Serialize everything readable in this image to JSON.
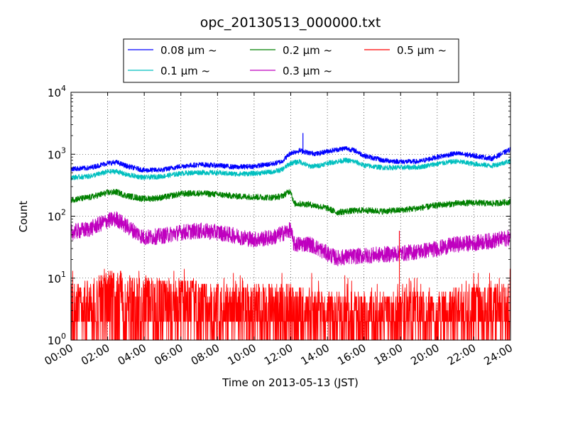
{
  "chart_data": {
    "type": "line",
    "title": "opc_20130513_000000.txt",
    "xlabel": "Time on 2013-05-13 (JST)",
    "ylabel": "Count",
    "x_scale": "time",
    "y_scale": "log",
    "xlim": [
      "00:00",
      "24:00"
    ],
    "ylim": [
      1,
      10000
    ],
    "grid": true,
    "legend_position": "top-center",
    "x_ticks": [
      "00:00",
      "02:00",
      "04:00",
      "06:00",
      "08:00",
      "10:00",
      "12:00",
      "14:00",
      "16:00",
      "18:00",
      "20:00",
      "22:00",
      "24:00"
    ],
    "y_ticks": [
      {
        "value": 1,
        "base": "10",
        "exp": "0"
      },
      {
        "value": 10,
        "base": "10",
        "exp": "1"
      },
      {
        "value": 100,
        "base": "10",
        "exp": "2"
      },
      {
        "value": 1000,
        "base": "10",
        "exp": "3"
      },
      {
        "value": 10000,
        "base": "10",
        "exp": "4"
      }
    ],
    "series": [
      {
        "name": "0.08 μm ~",
        "color": "#0000ff",
        "x": [
          "00:00",
          "01:00",
          "02:00",
          "02:30",
          "03:00",
          "04:00",
          "05:00",
          "06:00",
          "07:00",
          "08:00",
          "09:00",
          "10:00",
          "11:00",
          "11:30",
          "12:00",
          "12:30",
          "13:00",
          "13:30",
          "14:00",
          "15:00",
          "15:30",
          "16:00",
          "17:00",
          "18:00",
          "19:00",
          "20:00",
          "21:00",
          "22:00",
          "23:00",
          "24:00"
        ],
        "y": [
          580,
          600,
          720,
          740,
          650,
          550,
          560,
          640,
          680,
          660,
          620,
          640,
          700,
          760,
          1050,
          1150,
          1050,
          1020,
          1120,
          1250,
          1150,
          950,
          800,
          760,
          760,
          900,
          1030,
          950,
          850,
          1200
        ]
      },
      {
        "name": "0.1 μm ~",
        "color": "#00bfbf",
        "x": [
          "00:00",
          "01:00",
          "02:00",
          "02:30",
          "03:00",
          "04:00",
          "05:00",
          "06:00",
          "07:00",
          "08:00",
          "09:00",
          "10:00",
          "11:00",
          "11:30",
          "12:00",
          "12:30",
          "13:00",
          "13:30",
          "14:00",
          "15:00",
          "15:30",
          "16:00",
          "17:00",
          "18:00",
          "19:00",
          "20:00",
          "21:00",
          "22:00",
          "23:00",
          "24:00"
        ],
        "y": [
          420,
          440,
          520,
          530,
          470,
          420,
          440,
          490,
          510,
          500,
          480,
          490,
          520,
          560,
          720,
          760,
          640,
          650,
          720,
          800,
          760,
          660,
          610,
          610,
          620,
          700,
          770,
          700,
          650,
          780
        ]
      },
      {
        "name": "0.2 μm ~",
        "color": "#008000",
        "x": [
          "00:00",
          "01:00",
          "02:00",
          "02:30",
          "03:00",
          "04:00",
          "05:00",
          "06:00",
          "07:00",
          "08:00",
          "09:00",
          "10:00",
          "11:00",
          "11:30",
          "12:00",
          "12:10",
          "13:00",
          "14:00",
          "14:30",
          "15:00",
          "16:00",
          "17:00",
          "18:00",
          "19:00",
          "20:00",
          "21:00",
          "22:00",
          "23:00",
          "24:00"
        ],
        "y": [
          185,
          200,
          240,
          245,
          215,
          190,
          200,
          230,
          235,
          225,
          210,
          205,
          200,
          210,
          260,
          160,
          155,
          135,
          115,
          120,
          125,
          120,
          125,
          135,
          150,
          160,
          165,
          160,
          170
        ]
      },
      {
        "name": "0.3 μm ~",
        "color": "#bf00bf",
        "x": [
          "00:00",
          "01:00",
          "02:00",
          "02:30",
          "03:00",
          "04:00",
          "05:00",
          "06:00",
          "07:00",
          "08:00",
          "09:00",
          "10:00",
          "11:00",
          "11:30",
          "12:00",
          "12:10",
          "13:00",
          "14:00",
          "14:30",
          "15:00",
          "16:00",
          "17:00",
          "18:00",
          "19:00",
          "20:00",
          "21:00",
          "22:00",
          "23:00",
          "24:00"
        ],
        "y": [
          55,
          62,
          85,
          90,
          70,
          45,
          48,
          55,
          58,
          55,
          48,
          42,
          45,
          52,
          60,
          35,
          36,
          25,
          21,
          22,
          23,
          24,
          25,
          27,
          30,
          35,
          37,
          40,
          45
        ]
      },
      {
        "name": "0.5 μm ~",
        "color": "#ff0000",
        "x": [
          "00:00",
          "02:00",
          "02:30",
          "04:00",
          "06:00",
          "08:00",
          "10:00",
          "12:00",
          "14:00",
          "16:00",
          "18:00",
          "20:00",
          "22:00",
          "24:00"
        ],
        "y": [
          4,
          6,
          7,
          5,
          5,
          4,
          4,
          4,
          3,
          3,
          3,
          3,
          4,
          4
        ]
      }
    ],
    "annotations": [
      {
        "series": "0.08 μm ~",
        "x": "12:40",
        "y": 2200
      },
      {
        "series": "0.3 μm ~",
        "x": "17:56",
        "y": 58
      }
    ]
  }
}
